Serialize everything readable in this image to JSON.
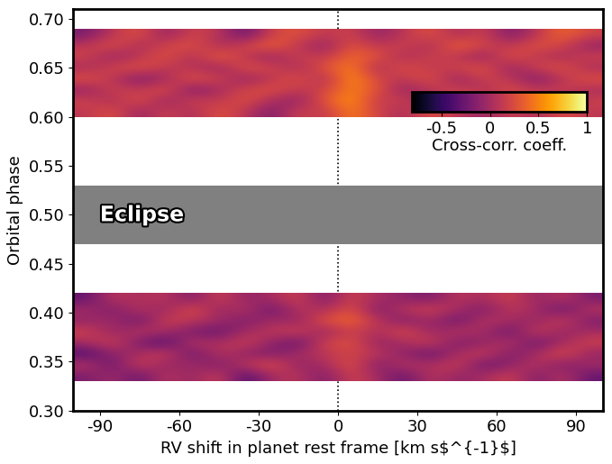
{
  "chart_data": {
    "type": "heatmap",
    "xlabel": "RV shift in planet rest frame [km s$^{-1}$]",
    "ylabel": "Orbital phase",
    "xlim": [
      -100,
      100
    ],
    "ylim": [
      0.3,
      0.71
    ],
    "xticks": [
      -90,
      -60,
      -30,
      0,
      30,
      60,
      90
    ],
    "yticks": [
      {
        "value": 0.3,
        "label": "0.30"
      },
      0.35,
      {
        "value": 0.4,
        "label": "0.40"
      },
      0.45,
      {
        "value": 0.5,
        "label": "0.50"
      },
      0.55,
      {
        "value": 0.6,
        "label": "0.60"
      },
      0.65,
      {
        "value": 0.7,
        "label": "0.70"
      }
    ],
    "reference_line": {
      "x": 0
    },
    "eclipse": {
      "text": "Eclipse",
      "y_range": [
        0.47,
        0.53
      ]
    },
    "colorbar": {
      "label": "Cross-corr. coeff.",
      "range": [
        -0.8,
        1.0
      ],
      "ticks": [
        -0.5,
        0,
        0.5,
        1
      ]
    },
    "panels": [
      {
        "x_range": [
          -100,
          100
        ],
        "y_range": [
          0.33,
          0.42
        ],
        "cells": [
          [
            -0.2,
            0.0,
            -0.3,
            0.1,
            -0.1,
            0.2,
            -0.4,
            0.0,
            0.1,
            -0.2,
            0.2,
            0.0,
            -0.3,
            0.1,
            -0.1,
            0.0,
            0.2,
            -0.2,
            0.1,
            -0.3
          ],
          [
            0.1,
            -0.3,
            0.2,
            -0.1,
            0.0,
            -0.2,
            0.1,
            0.3,
            -0.1,
            0.0,
            0.3,
            -0.2,
            0.1,
            0.0,
            0.2,
            -0.3,
            -0.1,
            0.1,
            -0.2,
            0.0
          ],
          [
            -0.4,
            -0.1,
            0.0,
            0.2,
            -0.3,
            0.1,
            -0.1,
            -0.2,
            0.0,
            0.1,
            0.2,
            0.1,
            -0.1,
            -0.3,
            0.0,
            0.2,
            -0.2,
            0.0,
            0.3,
            -0.1
          ],
          [
            0.0,
            0.2,
            -0.2,
            -0.4,
            0.1,
            0.0,
            0.2,
            -0.1,
            -0.3,
            0.2,
            0.3,
            -0.1,
            0.0,
            0.2,
            -0.2,
            -0.1,
            0.1,
            -0.3,
            0.0,
            0.2
          ],
          [
            0.2,
            -0.1,
            0.1,
            0.0,
            -0.2,
            -0.3,
            0.0,
            0.1,
            0.2,
            -0.1,
            0.2,
            0.0,
            0.3,
            -0.1,
            0.1,
            0.0,
            -0.3,
            0.2,
            -0.1,
            0.0
          ],
          [
            -0.1,
            0.0,
            -0.3,
            0.2,
            0.1,
            0.0,
            -0.2,
            0.0,
            -0.1,
            0.3,
            0.4,
            0.1,
            -0.2,
            0.0,
            -0.3,
            0.1,
            0.0,
            -0.1,
            0.2,
            -0.2
          ],
          [
            0.0,
            -0.2,
            0.1,
            -0.1,
            0.3,
            -0.1,
            0.1,
            -0.3,
            0.1,
            0.0,
            0.3,
            -0.2,
            0.1,
            0.2,
            0.0,
            -0.2,
            0.1,
            0.0,
            -0.3,
            0.1
          ],
          [
            -0.3,
            0.1,
            0.0,
            0.1,
            -0.2,
            0.2,
            -0.1,
            0.0,
            0.2,
            -0.2,
            0.2,
            0.0,
            -0.1,
            -0.2,
            0.1,
            0.0,
            0.2,
            -0.1,
            0.1,
            -0.2
          ]
        ]
      },
      {
        "x_range": [
          -100,
          100
        ],
        "y_range": [
          0.6,
          0.69
        ],
        "cells": [
          [
            0.1,
            0.3,
            -0.1,
            0.2,
            0.0,
            0.3,
            0.1,
            -0.2,
            0.2,
            0.1,
            0.5,
            0.2,
            0.0,
            0.3,
            0.1,
            -0.1,
            0.2,
            0.0,
            0.3,
            0.1
          ],
          [
            0.2,
            0.0,
            0.3,
            -0.1,
            0.2,
            0.1,
            0.3,
            0.0,
            -0.1,
            0.3,
            0.6,
            0.1,
            0.2,
            -0.1,
            0.3,
            0.2,
            0.0,
            0.2,
            -0.1,
            0.2
          ],
          [
            -0.1,
            0.2,
            0.1,
            0.3,
            -0.2,
            0.0,
            0.2,
            0.3,
            0.1,
            0.2,
            0.5,
            0.3,
            -0.1,
            0.1,
            0.2,
            0.0,
            0.3,
            0.1,
            0.2,
            0.0
          ],
          [
            0.3,
            0.1,
            -0.2,
            0.0,
            0.3,
            0.2,
            -0.1,
            0.1,
            0.3,
            0.0,
            0.6,
            0.2,
            0.1,
            0.3,
            -0.1,
            0.2,
            0.1,
            -0.2,
            0.1,
            0.3
          ],
          [
            0.0,
            0.2,
            0.3,
            0.1,
            0.1,
            -0.1,
            0.3,
            0.2,
            0.0,
            0.3,
            0.5,
            0.0,
            0.3,
            0.1,
            0.2,
            0.3,
            -0.1,
            0.2,
            0.3,
            0.0
          ],
          [
            0.2,
            -0.1,
            0.1,
            0.3,
            0.0,
            0.4,
            0.1,
            -0.1,
            0.2,
            0.1,
            0.4,
            0.3,
            0.0,
            0.2,
            0.1,
            -0.1,
            0.3,
            0.1,
            0.0,
            0.2
          ],
          [
            0.1,
            0.3,
            0.0,
            0.2,
            0.3,
            0.0,
            0.2,
            0.4,
            0.1,
            -0.1,
            0.3,
            0.1,
            0.2,
            0.0,
            0.4,
            0.2,
            0.1,
            0.3,
            0.2,
            -0.1
          ],
          [
            -0.2,
            0.1,
            0.3,
            -0.1,
            0.2,
            0.1,
            -0.3,
            0.2,
            0.3,
            0.1,
            0.2,
            -0.1,
            0.1,
            0.3,
            0.0,
            0.2,
            -0.2,
            0.1,
            0.4,
            0.2
          ]
        ]
      }
    ]
  }
}
